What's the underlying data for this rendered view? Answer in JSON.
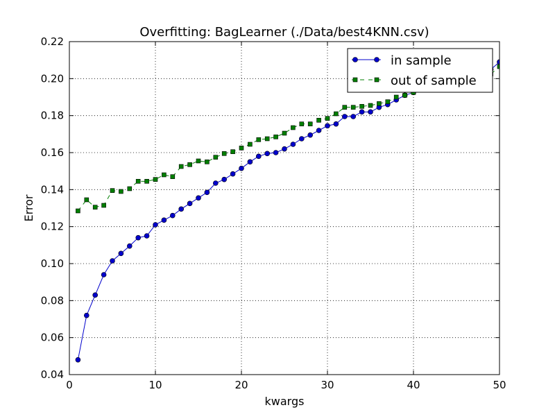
{
  "chart_data": {
    "type": "line",
    "title": "Overfitting: BagLearner (./Data/best4KNN.csv)",
    "xlabel": "kwargs",
    "ylabel": "Error",
    "xlim": [
      0,
      50
    ],
    "ylim": [
      0.04,
      0.22
    ],
    "x_ticks": [
      0,
      10,
      20,
      30,
      40,
      50
    ],
    "y_ticks": [
      0.04,
      0.06,
      0.08,
      0.1,
      0.12,
      0.14,
      0.16,
      0.18,
      0.2,
      0.22
    ],
    "x_tick_labels": [
      "0",
      "10",
      "20",
      "30",
      "40",
      "50"
    ],
    "y_tick_labels": [
      "0.04",
      "0.06",
      "0.08",
      "0.10",
      "0.12",
      "0.14",
      "0.16",
      "0.18",
      "0.20",
      "0.22"
    ],
    "grid": true,
    "legend_position": "top-right",
    "x": [
      1,
      2,
      3,
      4,
      5,
      6,
      7,
      8,
      9,
      10,
      11,
      12,
      13,
      14,
      15,
      16,
      17,
      18,
      19,
      20,
      21,
      22,
      23,
      24,
      25,
      26,
      27,
      28,
      29,
      30,
      31,
      32,
      33,
      34,
      35,
      36,
      37,
      38,
      39,
      40,
      41,
      42,
      43,
      44,
      45,
      46,
      47,
      48,
      49,
      50
    ],
    "series": [
      {
        "name": "in sample",
        "color": "#0000cc",
        "marker": "circle",
        "linestyle": "solid",
        "values": [
          0.048,
          0.072,
          0.083,
          0.094,
          0.1015,
          0.1055,
          0.1095,
          0.114,
          0.115,
          0.121,
          0.1235,
          0.126,
          0.1295,
          0.1325,
          0.1355,
          0.1385,
          0.1435,
          0.1455,
          0.1485,
          0.1515,
          0.155,
          0.158,
          0.1595,
          0.16,
          0.162,
          0.1645,
          0.1675,
          0.1695,
          0.172,
          0.1745,
          0.1755,
          0.1795,
          0.1795,
          0.182,
          0.182,
          0.1845,
          0.186,
          0.1885,
          0.191,
          0.1925,
          0.1945,
          0.196,
          0.1975,
          0.1985,
          0.2,
          0.2005,
          0.202,
          0.2035,
          0.205,
          0.209
        ]
      },
      {
        "name": "out of sample",
        "color": "#007f00",
        "marker": "square",
        "linestyle": "dashed",
        "values": [
          0.1285,
          0.1345,
          0.1305,
          0.1315,
          0.1395,
          0.139,
          0.1405,
          0.1445,
          0.1445,
          0.1455,
          0.148,
          0.147,
          0.1525,
          0.1535,
          0.1555,
          0.155,
          0.1575,
          0.1595,
          0.1605,
          0.1625,
          0.1645,
          0.167,
          0.1675,
          0.1685,
          0.1705,
          0.1735,
          0.1755,
          0.1755,
          0.1775,
          0.1785,
          0.181,
          0.1845,
          0.1845,
          0.185,
          0.1855,
          0.1865,
          0.1875,
          0.19,
          0.191,
          0.1925,
          0.194,
          0.195,
          0.1965,
          0.198,
          0.199,
          0.2,
          0.201,
          0.2015,
          0.2025,
          0.2065
        ]
      }
    ]
  }
}
